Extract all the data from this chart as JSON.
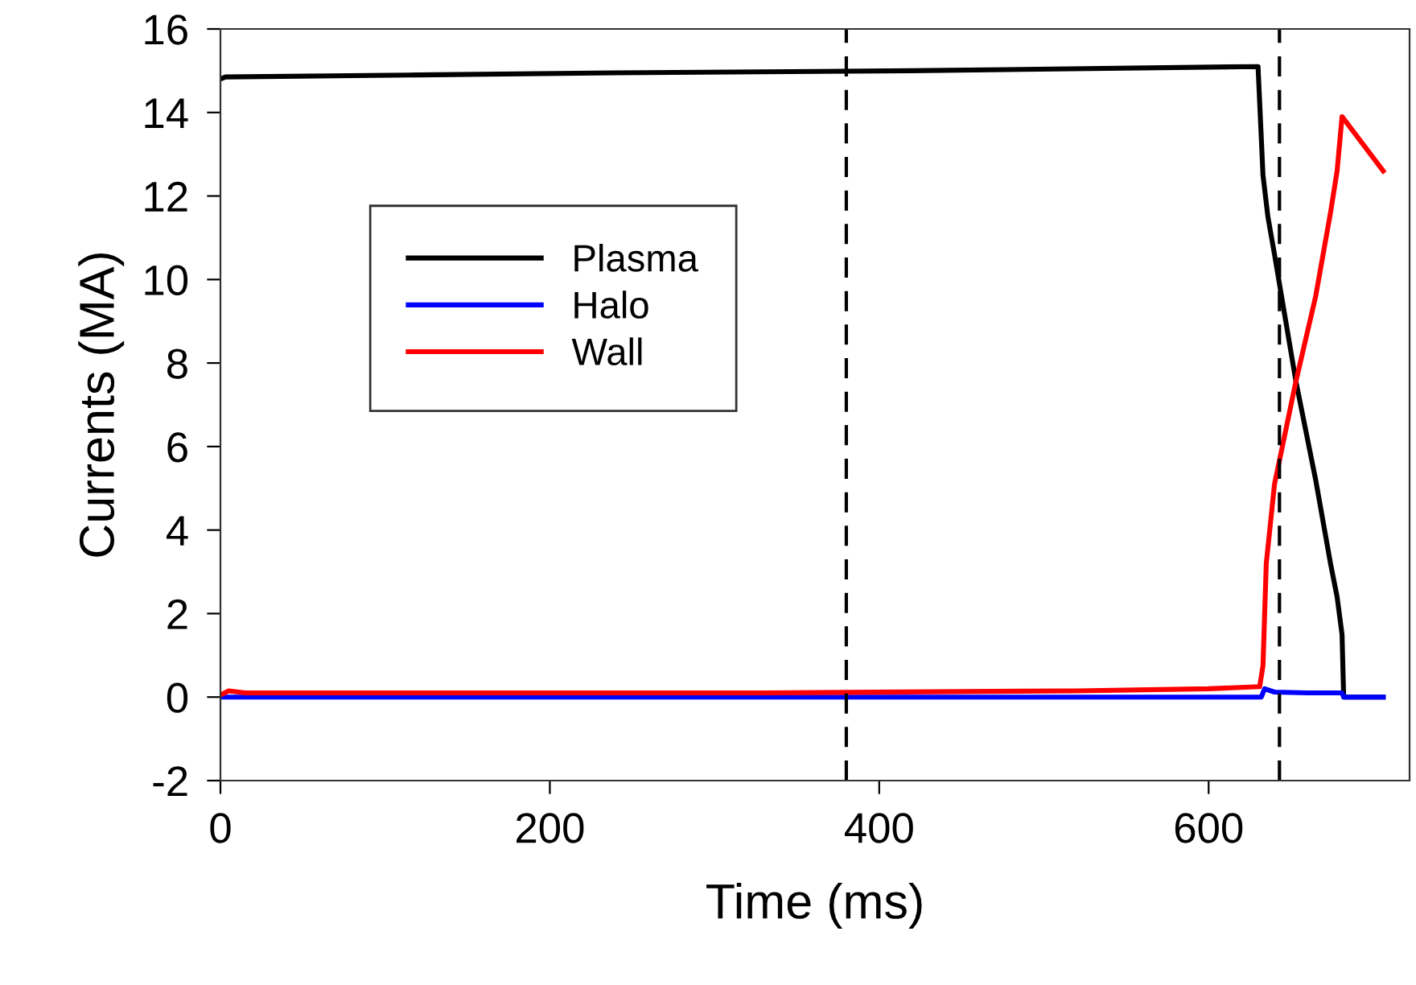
{
  "chart_data": {
    "type": "line",
    "xlabel": "Time (ms)",
    "ylabel": "Currents (MA)",
    "xlim": [
      0,
      722
    ],
    "ylim": [
      -2,
      16
    ],
    "xticks": [
      0,
      200,
      400,
      600
    ],
    "yticks": [
      -2,
      0,
      2,
      4,
      6,
      8,
      10,
      12,
      14,
      16
    ],
    "grid": false,
    "legend": "top left",
    "line_style": "solid",
    "series": [
      {
        "name": "Plasma",
        "color": "#000000",
        "x": [
          0,
          3,
          120,
          240,
          420,
          630,
          633,
          636,
          640,
          653,
          665,
          674,
          678,
          681,
          682,
          706
        ],
        "values": [
          14.8,
          14.85,
          14.9,
          14.95,
          15.0,
          15.1,
          12.5,
          11.5,
          10.6,
          7.56,
          5.2,
          3.2,
          2.4,
          1.5,
          0.0,
          0.0
        ]
      },
      {
        "name": "Halo",
        "color": "#0000ff",
        "x": [
          0,
          632,
          634,
          640,
          660,
          681,
          682,
          706
        ],
        "values": [
          0.0,
          0.0,
          0.2,
          0.12,
          0.1,
          0.1,
          0.0,
          0.0
        ]
      },
      {
        "name": "Wall",
        "color": "#ff0000",
        "x": [
          0,
          5,
          15,
          330,
          520,
          600,
          631,
          633,
          635,
          640,
          653,
          665,
          674,
          678,
          681,
          706
        ],
        "values": [
          0.05,
          0.15,
          0.1,
          0.1,
          0.15,
          0.2,
          0.25,
          0.75,
          3.2,
          5.1,
          7.56,
          9.6,
          11.6,
          12.6,
          13.9,
          12.6
        ]
      }
    ],
    "ref_lines": [
      {
        "axis": "x",
        "value": 380,
        "color": "#000000",
        "line_style": "dashed"
      },
      {
        "axis": "x",
        "value": 643,
        "color": "#000000",
        "line_style": "dashed"
      }
    ]
  }
}
